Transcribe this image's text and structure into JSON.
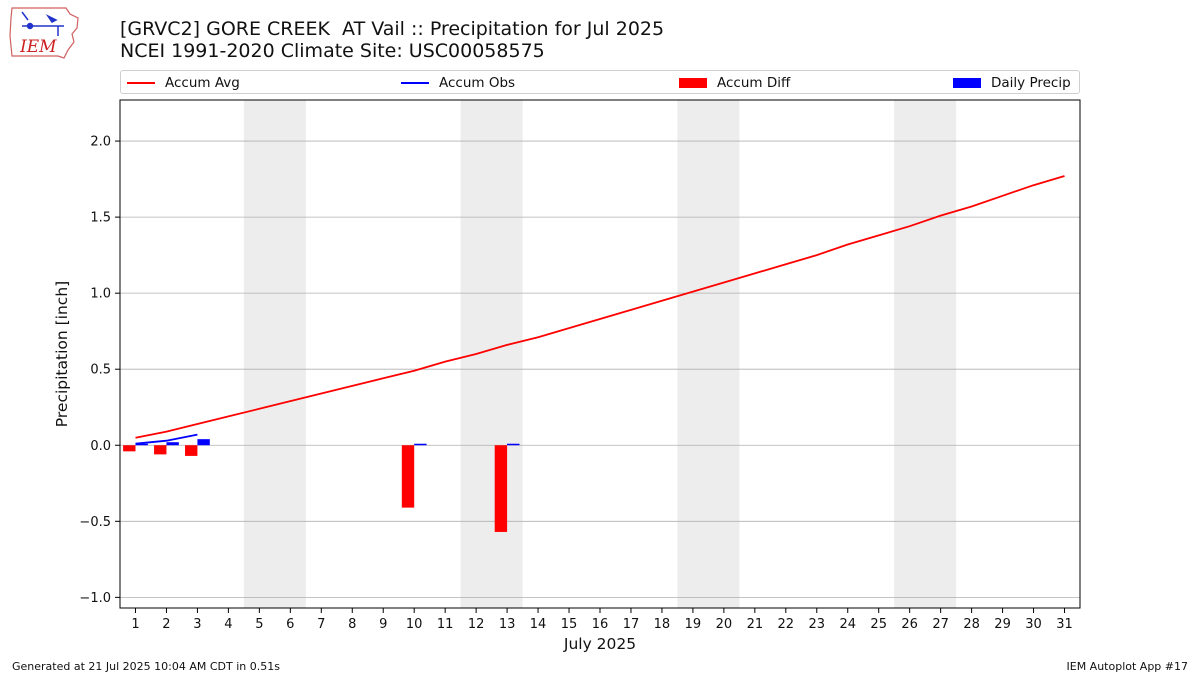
{
  "logo": {
    "text": "IEM",
    "icon": "iowa-state-outline-icon"
  },
  "footer": {
    "generated": "Generated at 21 Jul 2025 10:04 AM CDT in 0.51s",
    "app": "IEM Autoplot App #17"
  },
  "colors": {
    "avg": "#ff0000",
    "obs": "#0000ff",
    "diff": "#ff0000",
    "daily": "#0000ff",
    "weekend": "#ededed",
    "grid": "#b0b0b0"
  },
  "chart_data": {
    "type": "bar",
    "title": "[GRVC2] GORE CREEK  AT Vail :: Precipitation for Jul 2025",
    "subtitle": "NCEI 1991-2020 Climate Site: USC00058575",
    "xlabel": "July 2025",
    "ylabel": "Precipitation [inch]",
    "xlim": [
      0.5,
      31.5
    ],
    "ylim": [
      -1.07,
      2.27
    ],
    "yticks": [
      -1.0,
      -0.5,
      0.0,
      0.5,
      1.0,
      1.5,
      2.0
    ],
    "ytick_labels": [
      "−1.0",
      "−0.5",
      "0.0",
      "0.5",
      "1.0",
      "1.5",
      "2.0"
    ],
    "x": [
      1,
      2,
      3,
      4,
      5,
      6,
      7,
      8,
      9,
      10,
      11,
      12,
      13,
      14,
      15,
      16,
      17,
      18,
      19,
      20,
      21,
      22,
      23,
      24,
      25,
      26,
      27,
      28,
      29,
      30,
      31
    ],
    "xtick_labels": [
      "1",
      "2",
      "3",
      "4",
      "5",
      "6",
      "7",
      "8",
      "9",
      "10",
      "11",
      "12",
      "13",
      "14",
      "15",
      "16",
      "17",
      "18",
      "19",
      "20",
      "21",
      "22",
      "23",
      "24",
      "25",
      "26",
      "27",
      "28",
      "29",
      "30",
      "31"
    ],
    "weekend_spans": [
      [
        4.5,
        6.5
      ],
      [
        11.5,
        13.5
      ],
      [
        18.5,
        20.5
      ],
      [
        25.5,
        27.5
      ]
    ],
    "grid": "y",
    "legend": {
      "placement": "top",
      "entries": [
        "Accum Avg",
        "Accum Obs",
        "Accum Diff",
        "Daily Precip"
      ]
    },
    "series": [
      {
        "name": "Accum Avg",
        "kind": "line",
        "x": [
          1,
          2,
          3,
          4,
          5,
          6,
          7,
          8,
          9,
          10,
          11,
          12,
          13,
          14,
          15,
          16,
          17,
          18,
          19,
          20,
          21,
          22,
          23,
          24,
          25,
          26,
          27,
          28,
          29,
          30,
          31
        ],
        "values": [
          0.05,
          0.09,
          0.14,
          0.19,
          0.24,
          0.29,
          0.34,
          0.39,
          0.44,
          0.49,
          0.55,
          0.6,
          0.66,
          0.71,
          0.77,
          0.83,
          0.89,
          0.95,
          1.01,
          1.07,
          1.13,
          1.19,
          1.25,
          1.32,
          1.38,
          1.44,
          1.51,
          1.57,
          1.64,
          1.71,
          1.77
        ]
      },
      {
        "name": "Accum Obs",
        "kind": "line",
        "x": [
          1,
          2,
          3
        ],
        "values": [
          0.01,
          0.03,
          0.07
        ]
      },
      {
        "name": "Accum Diff",
        "kind": "bar",
        "x": [
          1,
          2,
          3,
          10,
          13
        ],
        "values": [
          -0.04,
          -0.06,
          -0.07,
          -0.41,
          -0.57
        ]
      },
      {
        "name": "Daily Precip",
        "kind": "bar",
        "x": [
          1,
          2,
          3,
          10,
          13
        ],
        "values": [
          0.01,
          0.02,
          0.04,
          0.01,
          0.01
        ]
      }
    ]
  }
}
